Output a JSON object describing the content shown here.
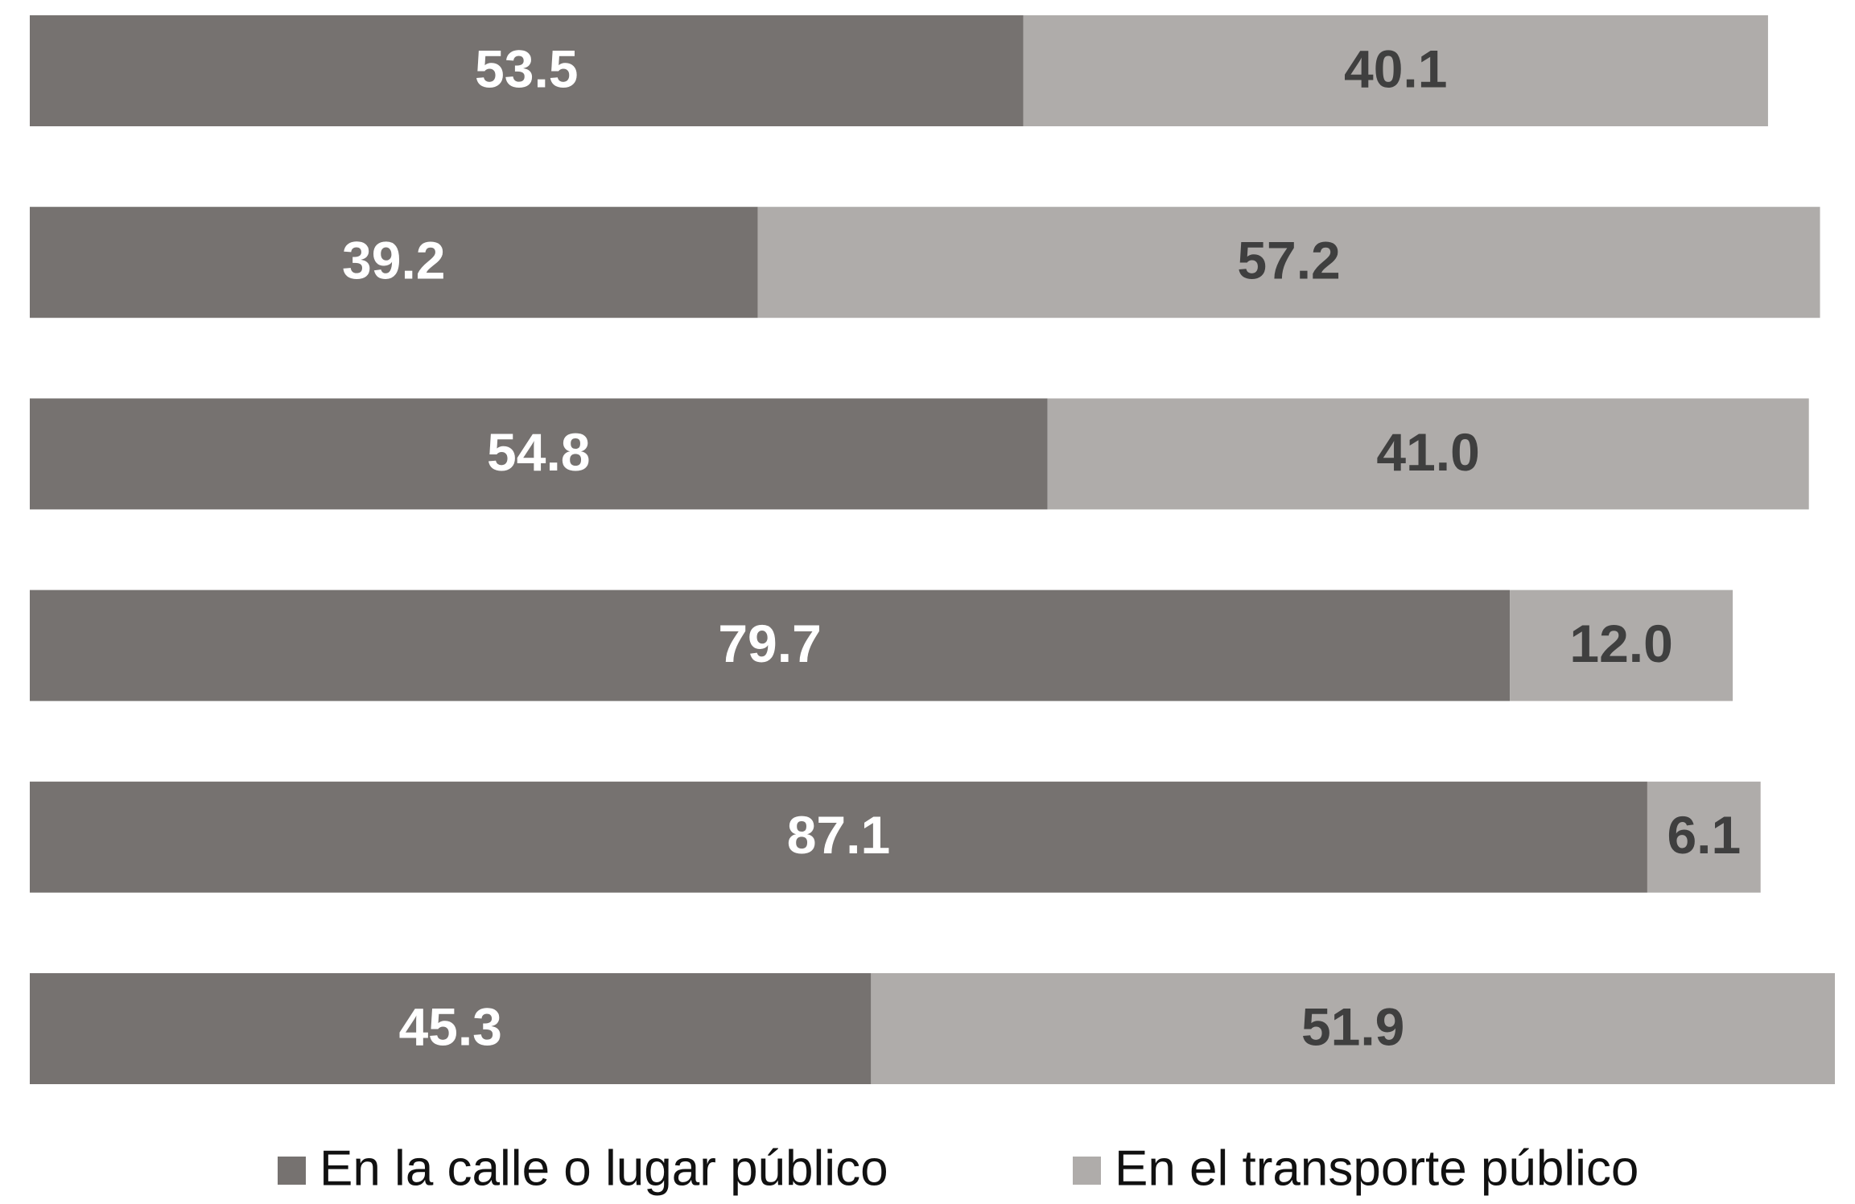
{
  "chart_data": {
    "type": "stacked-bar-horizontal",
    "categories": [
      null,
      null,
      null,
      null,
      null,
      null
    ],
    "series": [
      {
        "name": "En la calle o lugar público",
        "color": "#767270",
        "label_color": "#ffffff",
        "values": [
          53.5,
          39.2,
          54.8,
          79.7,
          87.1,
          45.3
        ]
      },
      {
        "name": "En el transporte público",
        "color": "#afacaa",
        "label_color": "#3f3f3f",
        "values": [
          40.1,
          57.2,
          41.0,
          12.0,
          6.1,
          51.9
        ],
        "value_labels": [
          "40.1",
          "57.2",
          "41.0",
          "12.0",
          "6.1",
          "51.9"
        ]
      }
    ],
    "legend": "bottom"
  }
}
